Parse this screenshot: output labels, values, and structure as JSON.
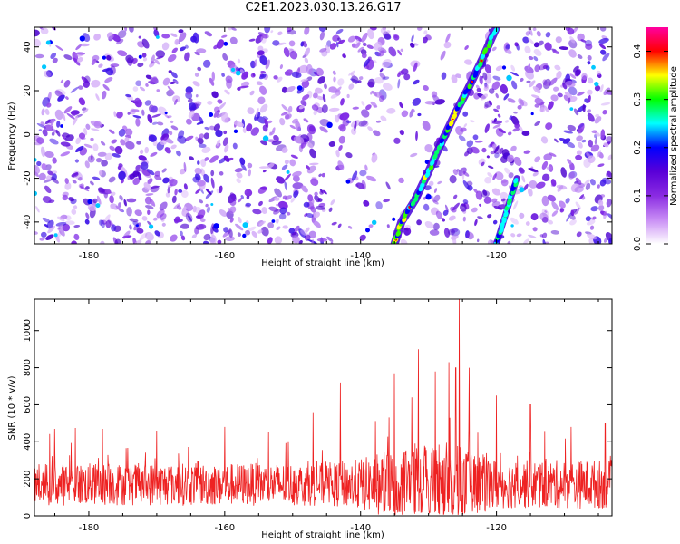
{
  "title": "C2E1.2023.030.13.26.G17",
  "colors": {
    "snr_line": "#ee2222",
    "colormap": [
      "#ffffff",
      "#c98ef5",
      "#8a2be2",
      "#5a00d8",
      "#0000ff",
      "#00ffff",
      "#00ff00",
      "#ffff00",
      "#ff0000",
      "#ff00a0"
    ]
  },
  "chart_data": [
    {
      "type": "heatmap",
      "xlabel": "Height of straight line (km)",
      "ylabel": "Frequency (Hz)",
      "xlim": [
        -188,
        -103
      ],
      "ylim": [
        -50,
        49
      ],
      "xticks": [
        -180,
        -160,
        -140,
        -120
      ],
      "yticks": [
        -40,
        -20,
        0,
        20,
        40
      ],
      "colorbar": {
        "label": "Normalized spectral amplitude",
        "range": [
          0.0,
          0.45
        ],
        "ticks": [
          0.0,
          0.1,
          0.2,
          0.3,
          0.4
        ]
      },
      "features": [
        {
          "name": "",
          "x": [
            -135,
            -134,
            -132,
            -130,
            -128,
            -126,
            -124,
            -122,
            -120
          ],
          "y": [
            -50,
            -40,
            -30,
            -17,
            -3,
            10,
            22,
            35,
            49
          ]
        },
        {
          "name": "",
          "x": [
            -120,
            -119,
            -118,
            -117
          ],
          "y": [
            -50,
            -40,
            -30,
            -20
          ]
        }
      ]
    },
    {
      "type": "line",
      "xlabel": "Height of straight line (km)",
      "ylabel": "SNR (10 * v/v)",
      "xlim": [
        -188,
        -103
      ],
      "ylim": [
        0,
        1170
      ],
      "xticks": [
        -180,
        -160,
        -140,
        -120
      ],
      "yticks": [
        0,
        200,
        400,
        600,
        800,
        1000
      ],
      "baseline": 170,
      "peaks": [
        {
          "x": -185,
          "y": 470
        },
        {
          "x": -182,
          "y": 475
        },
        {
          "x": -178,
          "y": 470
        },
        {
          "x": -170,
          "y": 460
        },
        {
          "x": -160,
          "y": 480
        },
        {
          "x": -147,
          "y": 560
        },
        {
          "x": -143,
          "y": 720
        },
        {
          "x": -135,
          "y": 770
        },
        {
          "x": -131.5,
          "y": 900
        },
        {
          "x": -129,
          "y": 780
        },
        {
          "x": -127,
          "y": 830
        },
        {
          "x": -126,
          "y": 800
        },
        {
          "x": -125.5,
          "y": 1170
        },
        {
          "x": -124,
          "y": 800
        },
        {
          "x": -120,
          "y": 650
        },
        {
          "x": -115,
          "y": 600
        },
        {
          "x": -109,
          "y": 480
        },
        {
          "x": -104,
          "y": 500
        }
      ]
    }
  ]
}
